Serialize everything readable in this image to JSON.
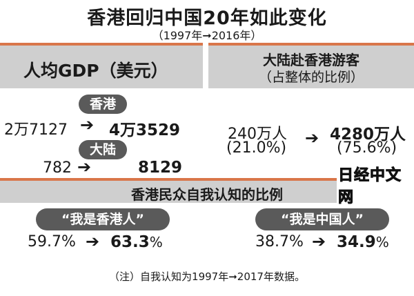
{
  "title": "香港回归中国20年如此变化",
  "subtitle": "（1997年➞2016年）",
  "gdp": {
    "title": "人均GDP（美元）",
    "hk": {
      "label": "香港",
      "from": "2万7127",
      "to": "4万3529"
    },
    "mainland": {
      "label": "大陆",
      "from": "782",
      "to": "8129"
    }
  },
  "visitors": {
    "title": "大陆赴香港游客",
    "subtitle": "（占整体的比例）",
    "from": "240万人",
    "from_pct": "(21.0%)",
    "to": "4280万人",
    "to_pct": "(75.6%)"
  },
  "identity": {
    "title": "香港民众自我认知的比例",
    "hk_label": "“我是香港人”",
    "hk_from": "59.7%",
    "hk_to": "63.3",
    "cn_label": "“我是中国人”",
    "cn_from": "38.7%",
    "cn_to": "34.9",
    "pct_sign": "%"
  },
  "arrow": "➔",
  "note": "（注）自我认知为1997年➞2017年数据。",
  "watermark": "日经中文网"
}
